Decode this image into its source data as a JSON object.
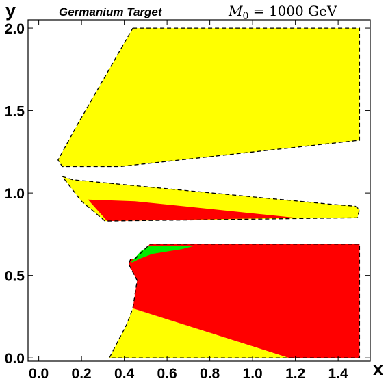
{
  "chart_data": {
    "type": "area",
    "title": "Germanium Target",
    "subtitle_symbol": "M",
    "subtitle_subscript": "0",
    "subtitle_value": " = 1000 GeV",
    "xlabel": "x",
    "ylabel": "y",
    "xlim": [
      -0.05,
      1.55
    ],
    "ylim": [
      -0.02,
      2.05
    ],
    "xticks": [
      "0.0",
      "0.2",
      "0.4",
      "0.6",
      "0.8",
      "1.0",
      "1.2",
      "1.4"
    ],
    "yticks": [
      "0.0",
      "0.5",
      "1.0",
      "1.5",
      "2.0"
    ],
    "xtick_values": [
      0.0,
      0.2,
      0.4,
      0.6,
      0.8,
      1.0,
      1.2,
      1.4
    ],
    "ytick_values": [
      0.0,
      0.5,
      1.0,
      1.5,
      2.0
    ],
    "grid": false,
    "colors": {
      "yellow": "#ffff00",
      "red": "#ff0000",
      "green": "#00ee00",
      "boundary": "#000000"
    },
    "regions": [
      {
        "color": "yellow",
        "points": [
          [
            0.44,
            2.0
          ],
          [
            1.5,
            2.0
          ],
          [
            1.5,
            1.32
          ],
          [
            0.38,
            1.16
          ],
          [
            0.11,
            1.16
          ],
          [
            0.09,
            1.2
          ],
          [
            0.17,
            1.39
          ]
        ]
      },
      {
        "color": "yellow",
        "points": [
          [
            0.11,
            1.1
          ],
          [
            0.16,
            1.08
          ],
          [
            1.38,
            0.93
          ],
          [
            1.48,
            0.92
          ],
          [
            1.5,
            0.9
          ],
          [
            1.49,
            0.85
          ],
          [
            0.31,
            0.83
          ],
          [
            0.2,
            0.95
          ]
        ]
      },
      {
        "color": "red",
        "points": [
          [
            0.23,
            0.96
          ],
          [
            0.45,
            0.95
          ],
          [
            1.2,
            0.85
          ],
          [
            0.32,
            0.83
          ]
        ]
      },
      {
        "color": "red",
        "points": [
          [
            0.45,
            0.6
          ],
          [
            0.52,
            0.69
          ],
          [
            1.5,
            0.69
          ],
          [
            1.5,
            0.0
          ],
          [
            1.17,
            0.0
          ],
          [
            0.44,
            0.3
          ],
          [
            0.46,
            0.47
          ],
          [
            0.42,
            0.57
          ],
          [
            0.43,
            0.6
          ]
        ]
      },
      {
        "color": "yellow",
        "points": [
          [
            0.33,
            0.0
          ],
          [
            1.17,
            0.0
          ],
          [
            0.44,
            0.3
          ],
          [
            0.41,
            0.2
          ],
          [
            0.35,
            0.05
          ]
        ]
      },
      {
        "color": "green",
        "points": [
          [
            0.43,
            0.58
          ],
          [
            0.48,
            0.65
          ],
          [
            0.52,
            0.68
          ],
          [
            0.73,
            0.68
          ],
          [
            0.67,
            0.66
          ],
          [
            0.53,
            0.63
          ],
          [
            0.47,
            0.6
          ],
          [
            0.44,
            0.58
          ]
        ]
      }
    ],
    "boundaries": [
      [
        [
          0.44,
          2.0
        ],
        [
          1.5,
          2.0
        ],
        [
          1.5,
          1.32
        ],
        [
          0.38,
          1.16
        ],
        [
          0.11,
          1.16
        ],
        [
          0.09,
          1.2
        ],
        [
          0.17,
          1.39
        ],
        [
          0.44,
          2.0
        ]
      ],
      [
        [
          0.11,
          1.1
        ],
        [
          0.16,
          1.08
        ],
        [
          1.38,
          0.93
        ],
        [
          1.48,
          0.92
        ],
        [
          1.5,
          0.9
        ],
        [
          1.49,
          0.85
        ],
        [
          0.31,
          0.83
        ],
        [
          0.2,
          0.95
        ],
        [
          0.11,
          1.1
        ]
      ],
      [
        [
          0.45,
          0.6
        ],
        [
          0.52,
          0.69
        ],
        [
          1.5,
          0.69
        ],
        [
          1.5,
          0.0
        ],
        [
          0.33,
          0.0
        ],
        [
          0.35,
          0.05
        ],
        [
          0.41,
          0.2
        ],
        [
          0.44,
          0.3
        ],
        [
          0.46,
          0.47
        ],
        [
          0.42,
          0.57
        ],
        [
          0.43,
          0.6
        ]
      ]
    ]
  }
}
